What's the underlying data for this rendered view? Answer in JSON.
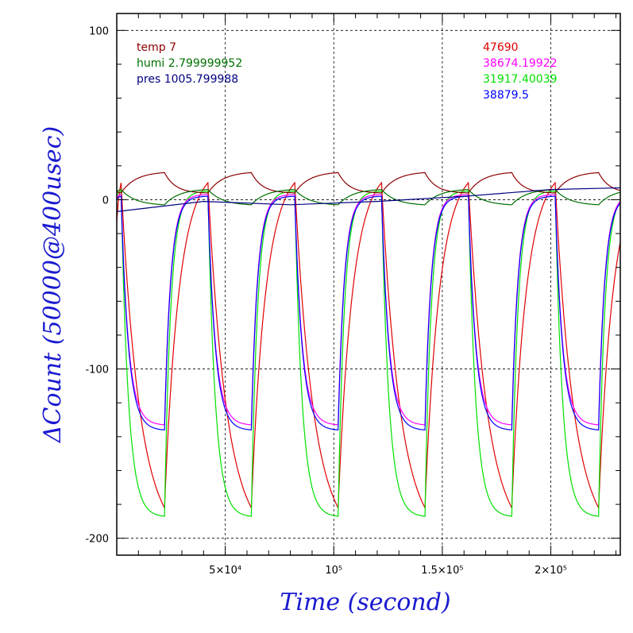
{
  "chart_data": {
    "type": "line",
    "xlabel": "Time (second)",
    "ylabel": "ΔCount (50000@400usec)",
    "xlim": [
      0,
      232000
    ],
    "ylim": [
      -210,
      110
    ],
    "grid": true,
    "x_ticks": [
      {
        "value": 50000,
        "label": "5×10⁴"
      },
      {
        "value": 100000,
        "label": "10⁵"
      },
      {
        "value": 150000,
        "label": "1.5×10⁵"
      },
      {
        "value": 200000,
        "label": "2×10⁵"
      }
    ],
    "y_ticks": [
      {
        "value": 100,
        "label": "100"
      },
      {
        "value": 0,
        "label": "0"
      },
      {
        "value": -100,
        "label": "-100"
      },
      {
        "value": -200,
        "label": "-200"
      }
    ],
    "legend_left": [
      {
        "text": "temp 7",
        "color": "#8b0000"
      },
      {
        "text": "humi 2.799999952",
        "color": "#007000"
      },
      {
        "text": "pres 1005.799988",
        "color": "#000080"
      }
    ],
    "legend_right": [
      {
        "text": "47690",
        "color": "#e00000"
      },
      {
        "text": "38674.19922",
        "color": "#ff00ff"
      },
      {
        "text": "31917.40039",
        "color": "#00e000"
      },
      {
        "text": "38879.5",
        "color": "#0000ff"
      }
    ],
    "cycle": {
      "period": 40000,
      "cycles": 6,
      "first_rise": 2000,
      "start": 0
    },
    "series": [
      {
        "color": "#e00000",
        "kind": "slow_decay",
        "min": -182,
        "peak": 10,
        "decay_end": 22000
      },
      {
        "color": "#00e000",
        "kind": "fast_decay",
        "min": -187,
        "peak": 5,
        "decay_end": 20000
      },
      {
        "color": "#ff00ff",
        "kind": "fast_decay",
        "min": -133,
        "peak": 3,
        "decay_end": 20500
      },
      {
        "color": "#0000ff",
        "kind": "fast_decay",
        "min": -136,
        "peak": 2,
        "decay_end": 20000
      },
      {
        "color": "#8b0000",
        "kind": "temp",
        "low": 4,
        "high": 16
      },
      {
        "color": "#007000",
        "kind": "humi",
        "low": -3,
        "high": 6
      },
      {
        "color": "#000080",
        "kind": "pres",
        "points": [
          [
            0,
            -7
          ],
          [
            40000,
            -1
          ],
          [
            80000,
            -3
          ],
          [
            120000,
            -1
          ],
          [
            160000,
            2
          ],
          [
            200000,
            6
          ],
          [
            232000,
            7
          ]
        ]
      }
    ]
  }
}
